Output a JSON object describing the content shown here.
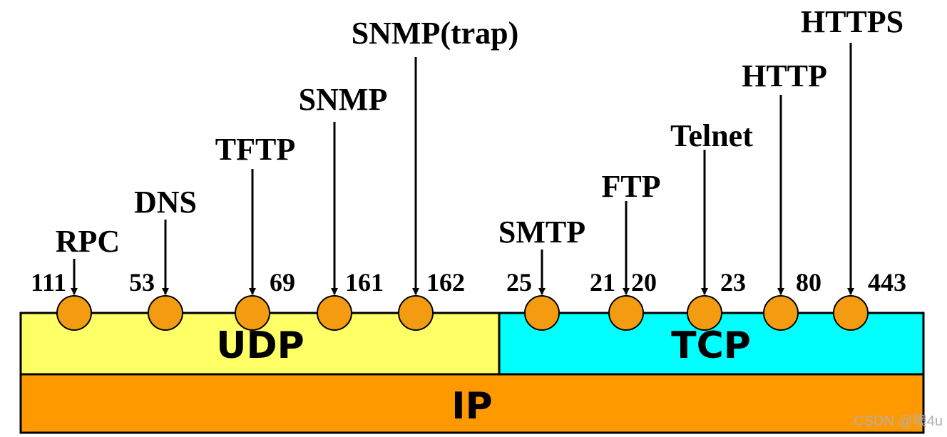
{
  "colors": {
    "udp_fill": "#ffff66",
    "tcp_fill": "#00ffff",
    "ip_fill": "#ff9900",
    "port_circle_fill": "#f39c12",
    "stroke": "#000000"
  },
  "layers": {
    "udp": "UDP",
    "tcp": "TCP",
    "ip": "IP"
  },
  "protocols": [
    {
      "id": "rpc",
      "label": "RPC",
      "port_left": "111",
      "port_right": ""
    },
    {
      "id": "dns",
      "label": "DNS",
      "port_left": "53",
      "port_right": ""
    },
    {
      "id": "tftp",
      "label": "TFTP",
      "port_left": "",
      "port_right": "69"
    },
    {
      "id": "snmp",
      "label": "SNMP",
      "port_left": "",
      "port_right": "161"
    },
    {
      "id": "snmp-trap",
      "label": "SNMP(trap)",
      "port_left": "",
      "port_right": "162"
    },
    {
      "id": "smtp",
      "label": "SMTP",
      "port_left": "25",
      "port_right": ""
    },
    {
      "id": "ftp",
      "label": "FTP",
      "port_left": "21",
      "port_right": "20"
    },
    {
      "id": "telnet",
      "label": "Telnet",
      "port_left": "",
      "port_right": "23"
    },
    {
      "id": "http",
      "label": "HTTP",
      "port_left": "",
      "port_right": "80"
    },
    {
      "id": "https",
      "label": "HTTPS",
      "port_left": "",
      "port_right": "443"
    }
  ],
  "watermark": "CSDN @噢4u"
}
